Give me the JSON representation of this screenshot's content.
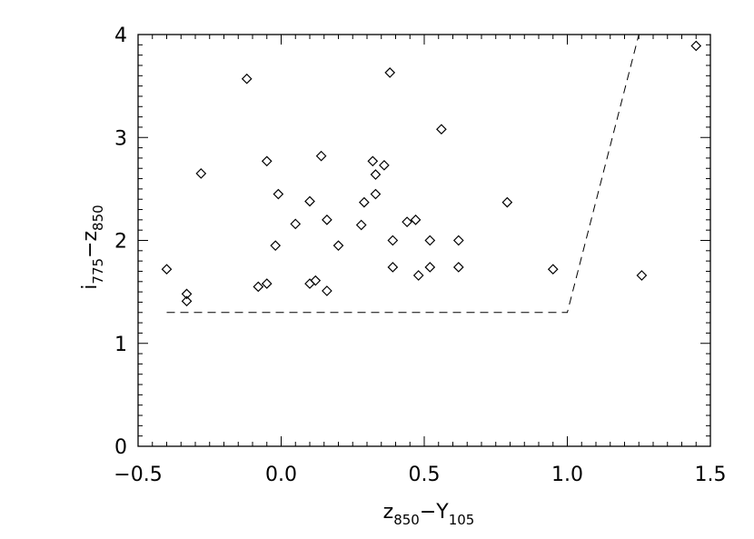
{
  "chart_data": {
    "type": "scatter",
    "xlim": [
      -0.5,
      1.5
    ],
    "ylim": [
      0,
      4
    ],
    "x_ticks": [
      "-0.5",
      "0.0",
      "0.5",
      "1.0",
      "1.5"
    ],
    "y_ticks": [
      "0",
      "1",
      "2",
      "3",
      "4"
    ],
    "xlabel": {
      "main": "z",
      "sub": "850",
      "dash": "−",
      "main2": "Y",
      "sub2": "105"
    },
    "ylabel": {
      "main": "i",
      "sub": "775",
      "dash": "−",
      "main2": "z",
      "sub2": "850"
    },
    "marker": "diamond",
    "grid": false,
    "points": [
      {
        "x": -0.4,
        "y": 1.72
      },
      {
        "x": -0.33,
        "y": 1.48
      },
      {
        "x": -0.33,
        "y": 1.41
      },
      {
        "x": -0.28,
        "y": 2.65
      },
      {
        "x": -0.12,
        "y": 3.57
      },
      {
        "x": -0.08,
        "y": 1.55
      },
      {
        "x": -0.05,
        "y": 1.58
      },
      {
        "x": -0.05,
        "y": 2.77
      },
      {
        "x": -0.02,
        "y": 1.95
      },
      {
        "x": -0.01,
        "y": 2.45
      },
      {
        "x": 0.05,
        "y": 2.16
      },
      {
        "x": 0.1,
        "y": 2.38
      },
      {
        "x": 0.1,
        "y": 1.58
      },
      {
        "x": 0.12,
        "y": 1.61
      },
      {
        "x": 0.14,
        "y": 2.82
      },
      {
        "x": 0.16,
        "y": 2.2
      },
      {
        "x": 0.16,
        "y": 1.51
      },
      {
        "x": 0.2,
        "y": 1.95
      },
      {
        "x": 0.28,
        "y": 2.15
      },
      {
        "x": 0.29,
        "y": 2.37
      },
      {
        "x": 0.32,
        "y": 2.77
      },
      {
        "x": 0.33,
        "y": 2.64
      },
      {
        "x": 0.33,
        "y": 2.45
      },
      {
        "x": 0.36,
        "y": 2.73
      },
      {
        "x": 0.38,
        "y": 3.63
      },
      {
        "x": 0.39,
        "y": 2.0
      },
      {
        "x": 0.39,
        "y": 1.74
      },
      {
        "x": 0.44,
        "y": 2.18
      },
      {
        "x": 0.47,
        "y": 2.2
      },
      {
        "x": 0.48,
        "y": 1.66
      },
      {
        "x": 0.52,
        "y": 2.0
      },
      {
        "x": 0.52,
        "y": 1.74
      },
      {
        "x": 0.56,
        "y": 3.08
      },
      {
        "x": 0.62,
        "y": 2.0
      },
      {
        "x": 0.62,
        "y": 1.74
      },
      {
        "x": 0.79,
        "y": 2.37
      },
      {
        "x": 0.95,
        "y": 1.72
      },
      {
        "x": 1.26,
        "y": 1.66
      },
      {
        "x": 1.45,
        "y": 3.89
      }
    ],
    "selection_boundary": {
      "style": "dashed",
      "points": [
        {
          "x": -0.4,
          "y": 1.3
        },
        {
          "x": 1.0,
          "y": 1.3
        },
        {
          "x": 1.25,
          "y": 4.0
        }
      ]
    }
  }
}
